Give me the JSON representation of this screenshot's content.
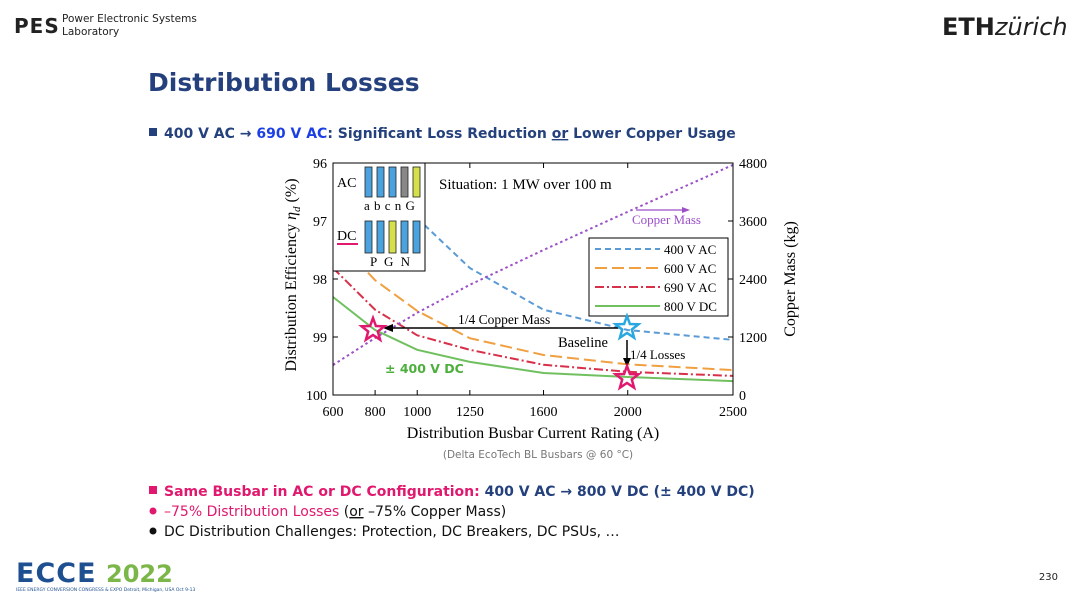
{
  "header": {
    "logo": "PES",
    "lab_line1": "Power Electronic Systems",
    "lab_line2": "Laboratory",
    "university_bold": "ETH",
    "university_rest": "zürich"
  },
  "slide": {
    "title": "Distribution Losses",
    "bullet1": [
      "400 V AC",
      " → ",
      "690 V AC",
      ": Significant Loss Reduction ",
      "or",
      " Lower Copper Usage"
    ],
    "caption": "(Delta EcoTech BL Busbars @ 60 °C)",
    "bullet2": [
      "Same Busbar in AC or DC Configuration: ",
      "400 V AC → 800 V DC (± 400 V DC)"
    ],
    "bullet3": [
      "–75% Distribution Losses",
      " (",
      "or",
      " –75% Copper Mass)"
    ],
    "bullet4": "DC Distribution Challenges: Protection, DC Breakers, DC PSUs, …",
    "page_number": "230"
  },
  "footer": {
    "logo": "ECCE",
    "year": "2022",
    "tagline": "IEEE ENERGY CONVERSION CONGRESS & EXPO  Detroit, Michigan, USA  Oct 9-13"
  },
  "chart_data": {
    "type": "line",
    "x_label": "Distribution Busbar Current Rating (A)",
    "y_label": [
      "Distribution Efficiency ",
      "η",
      "d",
      " (%)"
    ],
    "y2_label": "Copper Mass (kg)",
    "x": [
      600,
      800,
      1000,
      1250,
      1600,
      2000,
      2500
    ],
    "xlim": [
      600,
      2500
    ],
    "xticks": [
      600,
      800,
      1000,
      1250,
      1600,
      2000,
      2500
    ],
    "ylim": [
      96,
      100
    ],
    "yticks": [
      96,
      97,
      98,
      99,
      100
    ],
    "y_inverted": true,
    "y2lim": [
      0,
      4800
    ],
    "y2ticks": [
      0,
      1200,
      2400,
      3600,
      4800
    ],
    "series": [
      {
        "name": "400 V AC",
        "color": "#5b9bd5",
        "style": "dashed",
        "values": [
          null,
          null,
          96.95,
          97.81,
          98.53,
          98.88,
          99.05
        ]
      },
      {
        "name": "600 V AC",
        "color": "#f0a040",
        "style": "longdash",
        "values": [
          97.25,
          98.02,
          98.55,
          99.02,
          99.31,
          99.47,
          99.57
        ]
      },
      {
        "name": "690 V AC",
        "color": "#d9304a",
        "style": "dashdot",
        "values": [
          97.81,
          98.53,
          98.97,
          99.22,
          99.48,
          99.6,
          99.67
        ]
      },
      {
        "name": "800 V DC",
        "color": "#70c060",
        "style": "solid",
        "values": [
          98.31,
          98.88,
          99.22,
          99.43,
          99.62,
          99.69,
          99.76
        ]
      },
      {
        "name": "Copper Mass",
        "color": "#9b50c8",
        "style": "dotted",
        "axis": "y2",
        "in_legend": false,
        "values": [
          620,
          1180,
          1700,
          2280,
          3000,
          3790,
          4760
        ]
      }
    ],
    "annotations": {
      "situation": "Situation: 1 MW over 100 m",
      "copper": "1/4 Copper Mass",
      "baseline": "Baseline",
      "losses": "1/4 Losses",
      "dc": "± 400 V DC"
    },
    "inset": {
      "ac_label": "AC",
      "ac_conductors": "a b c n G",
      "dc_label": "DC",
      "dc_conductors": "P G N"
    }
  }
}
